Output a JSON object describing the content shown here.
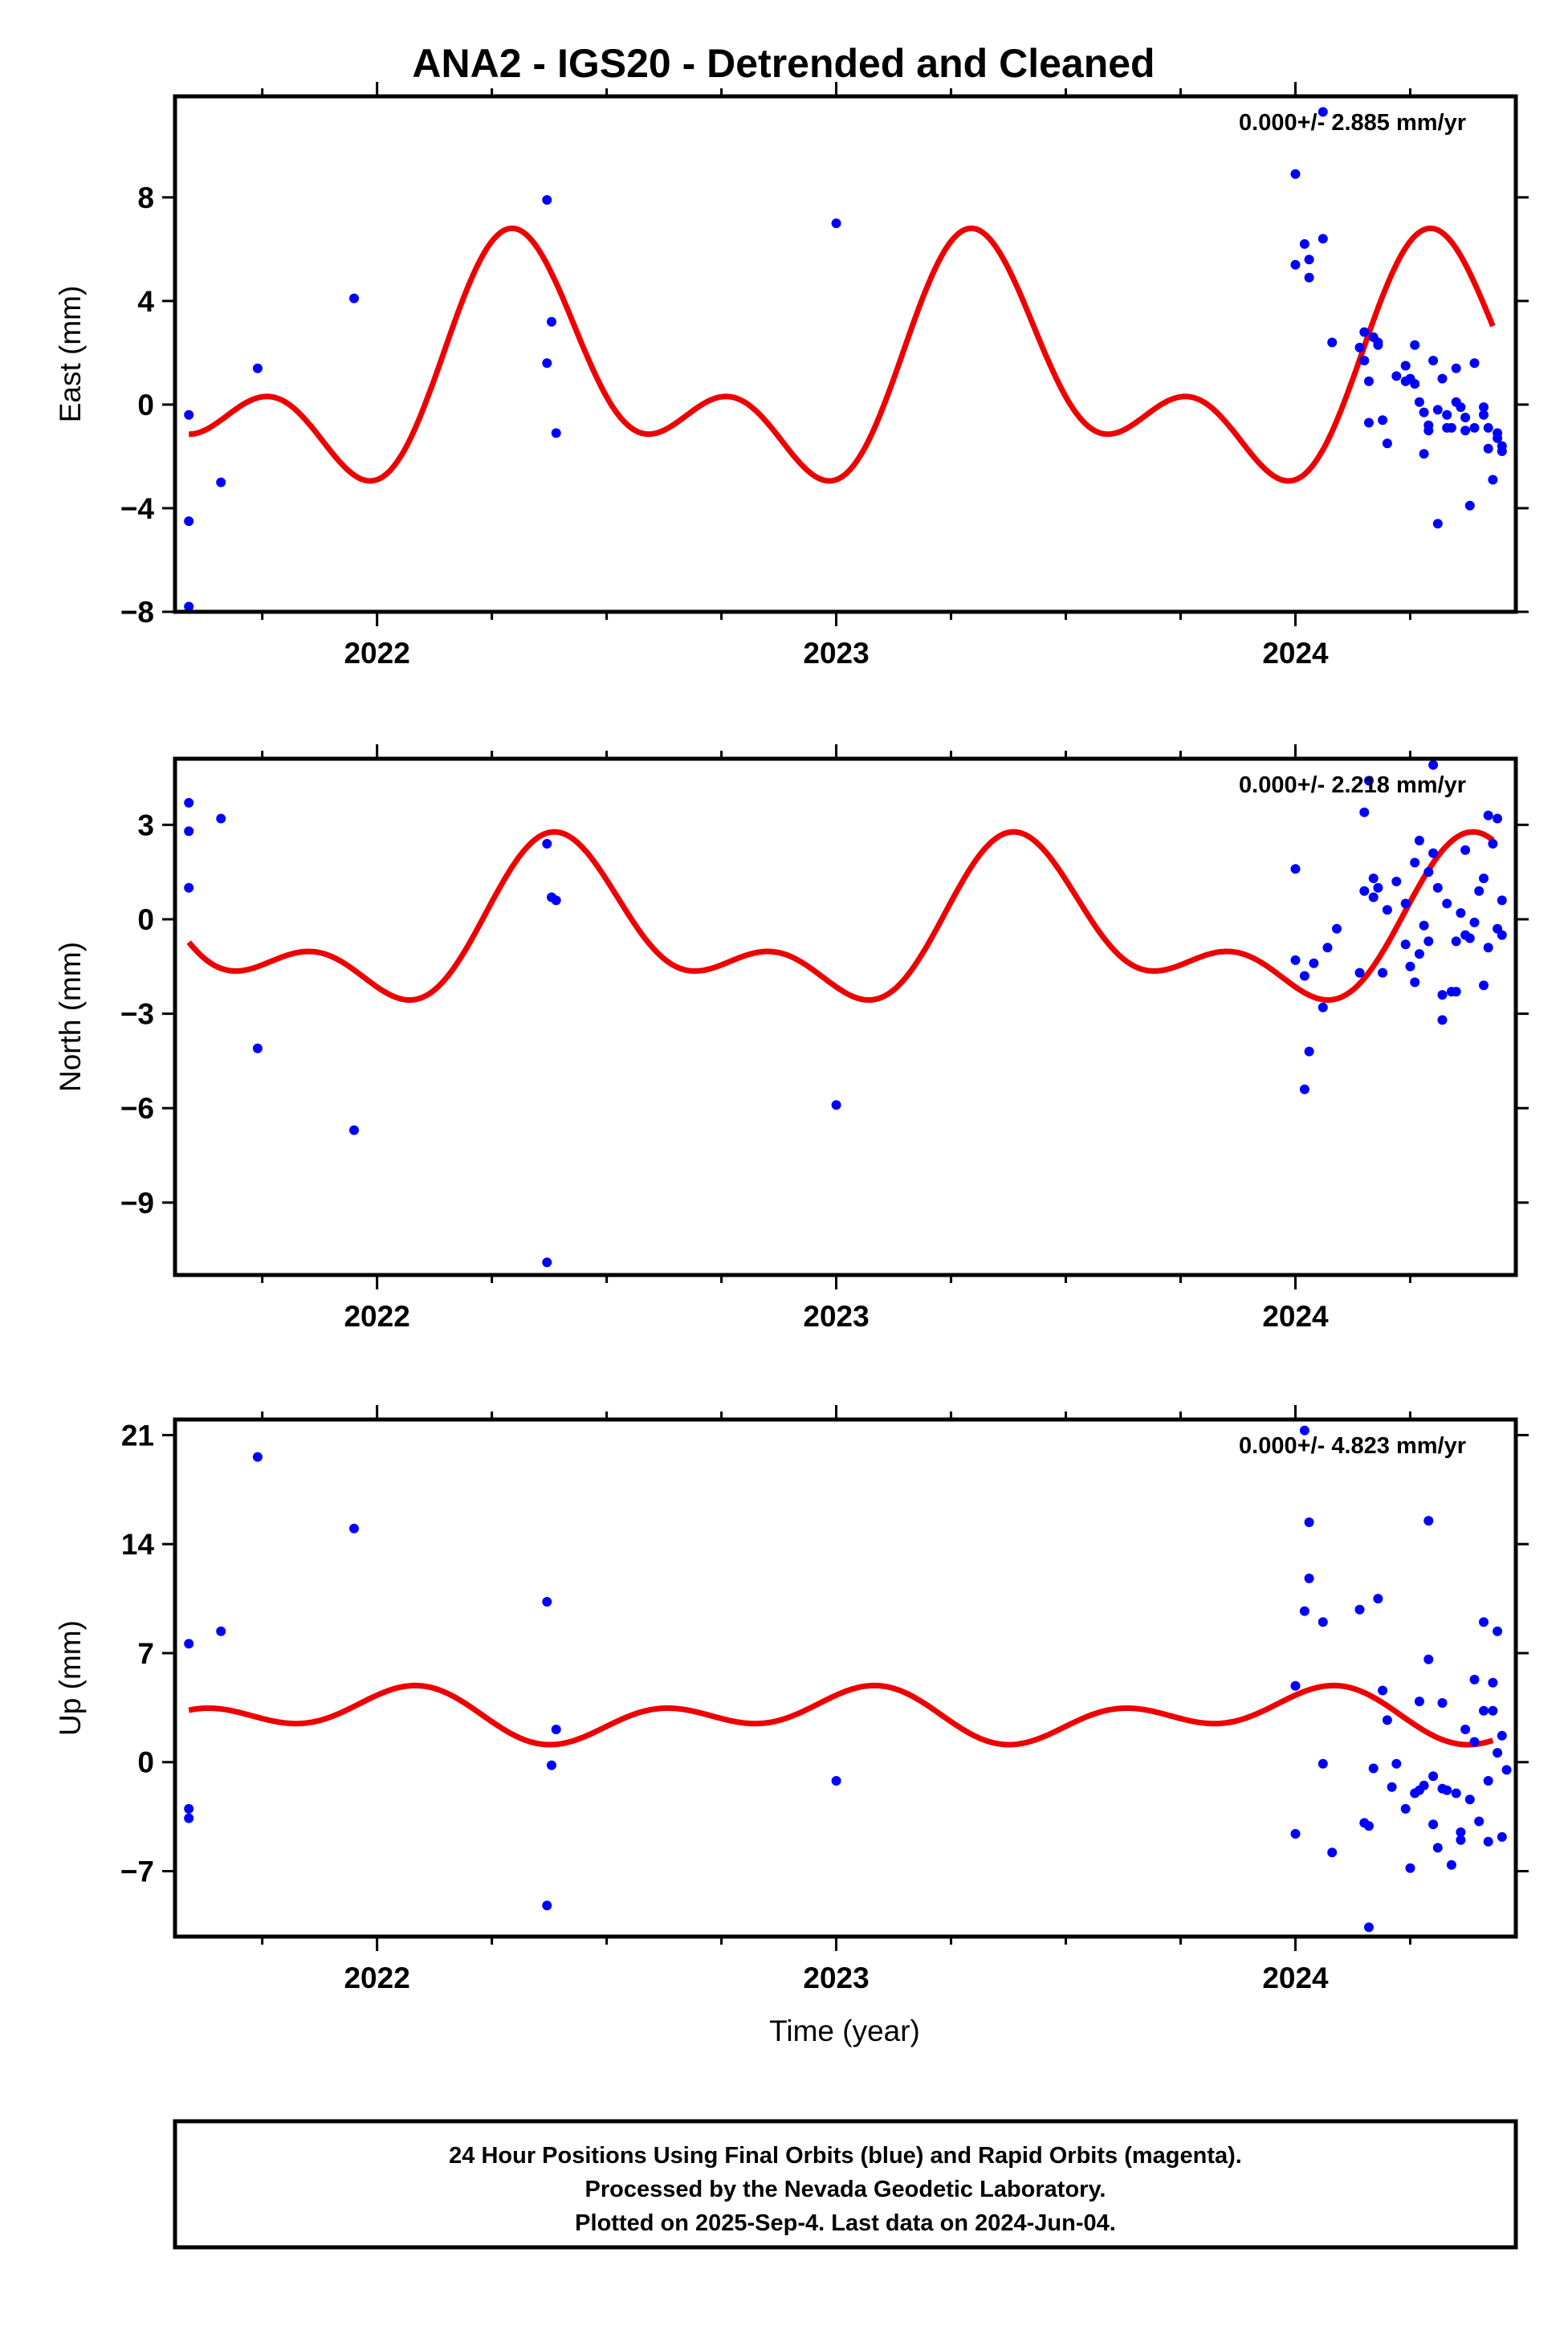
{
  "colors": {
    "final_orbits": "#0000ff",
    "model_fit": "#ee0000",
    "frame": "#000000"
  },
  "chart_data": {
    "type": "scatter",
    "title": "ANA2 - IGS20 - Detrended and Cleaned",
    "xlabel": "Time (year)",
    "xlim": [
      2021.56,
      2024.48
    ],
    "x_ticks": [
      2022,
      2023,
      2024
    ],
    "x_tick_labels": [
      "2022",
      "2023",
      "2024"
    ],
    "panels": [
      {
        "name": "east",
        "ylabel": "East (mm)",
        "ylim": [
          -8,
          11.9
        ],
        "y_ticks": [
          -8,
          -4,
          0,
          4,
          8
        ],
        "y_tick_labels": [
          "−8",
          "−4",
          "0",
          "4",
          "8"
        ],
        "rate_label": "0.000+/- 2.885 mm/yr",
        "model": {
          "offset": 1.0,
          "a1": -1.6,
          "b1": 3.0,
          "a2": -2.3,
          "b2": -1.0,
          "x_end": 2024.43
        },
        "points": [
          [
            2021.59,
            -0.4
          ],
          [
            2021.59,
            -4.5
          ],
          [
            2021.59,
            -7.8
          ],
          [
            2021.66,
            -3.0
          ],
          [
            2021.74,
            1.4
          ],
          [
            2021.95,
            4.1
          ],
          [
            2022.37,
            7.9
          ],
          [
            2022.37,
            1.6
          ],
          [
            2022.38,
            3.2
          ],
          [
            2022.39,
            -1.1
          ],
          [
            2023.0,
            7.0
          ],
          [
            2024.0,
            8.9
          ],
          [
            2024.0,
            5.4
          ],
          [
            2024.02,
            6.2
          ],
          [
            2024.03,
            5.6
          ],
          [
            2024.03,
            4.9
          ],
          [
            2024.06,
            11.3
          ],
          [
            2024.06,
            6.4
          ],
          [
            2024.08,
            2.4
          ],
          [
            2024.14,
            2.2
          ],
          [
            2024.15,
            2.8
          ],
          [
            2024.15,
            1.7
          ],
          [
            2024.16,
            0.9
          ],
          [
            2024.16,
            -0.7
          ],
          [
            2024.17,
            2.6
          ],
          [
            2024.18,
            2.3
          ],
          [
            2024.18,
            2.4
          ],
          [
            2024.19,
            -0.6
          ],
          [
            2024.2,
            -1.5
          ],
          [
            2024.22,
            1.1
          ],
          [
            2024.24,
            1.5
          ],
          [
            2024.24,
            0.9
          ],
          [
            2024.25,
            1.0
          ],
          [
            2024.26,
            0.8
          ],
          [
            2024.26,
            2.3
          ],
          [
            2024.27,
            0.1
          ],
          [
            2024.28,
            -0.3
          ],
          [
            2024.28,
            -1.9
          ],
          [
            2024.29,
            -1.0
          ],
          [
            2024.29,
            -0.8
          ],
          [
            2024.3,
            1.7
          ],
          [
            2024.31,
            -0.2
          ],
          [
            2024.31,
            -4.6
          ],
          [
            2024.32,
            1.0
          ],
          [
            2024.33,
            -0.4
          ],
          [
            2024.33,
            -0.9
          ],
          [
            2024.34,
            -0.9
          ],
          [
            2024.35,
            1.4
          ],
          [
            2024.35,
            0.1
          ],
          [
            2024.36,
            -0.1
          ],
          [
            2024.37,
            -1.0
          ],
          [
            2024.37,
            -0.5
          ],
          [
            2024.38,
            -3.9
          ],
          [
            2024.39,
            1.6
          ],
          [
            2024.39,
            -0.9
          ],
          [
            2024.41,
            -0.4
          ],
          [
            2024.41,
            -0.1
          ],
          [
            2024.42,
            -0.9
          ],
          [
            2024.42,
            -1.7
          ],
          [
            2024.43,
            -2.9
          ],
          [
            2024.44,
            -1.1
          ],
          [
            2024.44,
            -1.3
          ],
          [
            2024.45,
            -1.8
          ],
          [
            2024.45,
            -1.6
          ]
        ]
      },
      {
        "name": "north",
        "ylabel": "North (mm)",
        "ylim": [
          -11.3,
          5.1
        ],
        "y_ticks": [
          -9,
          -6,
          -3,
          0,
          3
        ],
        "y_tick_labels": [
          "−9",
          "−6",
          "−3",
          "0",
          "3"
        ],
        "rate_label": "0.000+/- 2.218 mm/yr",
        "model": {
          "offset": -0.45,
          "a1": -1.7,
          "b1": 1.0,
          "a2": 0.0,
          "b2": -1.3,
          "x_end": 2024.43
        },
        "points": [
          [
            2021.59,
            3.7
          ],
          [
            2021.59,
            2.8
          ],
          [
            2021.59,
            1.0
          ],
          [
            2021.66,
            3.2
          ],
          [
            2021.74,
            -4.1
          ],
          [
            2021.95,
            -6.7
          ],
          [
            2022.37,
            2.4
          ],
          [
            2022.37,
            -10.9
          ],
          [
            2022.38,
            0.7
          ],
          [
            2022.39,
            0.6
          ],
          [
            2023.0,
            -5.9
          ],
          [
            2024.0,
            1.6
          ],
          [
            2024.0,
            -1.3
          ],
          [
            2024.02,
            -5.4
          ],
          [
            2024.02,
            -1.8
          ],
          [
            2024.03,
            -4.2
          ],
          [
            2024.04,
            -1.4
          ],
          [
            2024.06,
            -2.8
          ],
          [
            2024.07,
            -0.9
          ],
          [
            2024.09,
            -0.3
          ],
          [
            2024.14,
            -1.7
          ],
          [
            2024.15,
            3.4
          ],
          [
            2024.15,
            0.9
          ],
          [
            2024.16,
            4.4
          ],
          [
            2024.17,
            1.3
          ],
          [
            2024.17,
            0.7
          ],
          [
            2024.18,
            1.0
          ],
          [
            2024.19,
            -1.7
          ],
          [
            2024.2,
            0.3
          ],
          [
            2024.22,
            1.2
          ],
          [
            2024.24,
            0.5
          ],
          [
            2024.24,
            -0.8
          ],
          [
            2024.25,
            -1.5
          ],
          [
            2024.26,
            1.8
          ],
          [
            2024.26,
            -2.0
          ],
          [
            2024.27,
            2.5
          ],
          [
            2024.27,
            -1.1
          ],
          [
            2024.28,
            -0.2
          ],
          [
            2024.29,
            1.5
          ],
          [
            2024.29,
            -0.7
          ],
          [
            2024.3,
            2.1
          ],
          [
            2024.3,
            4.9
          ],
          [
            2024.31,
            1.0
          ],
          [
            2024.32,
            -2.4
          ],
          [
            2024.32,
            -3.2
          ],
          [
            2024.33,
            0.5
          ],
          [
            2024.34,
            -2.3
          ],
          [
            2024.35,
            -2.3
          ],
          [
            2024.35,
            -0.7
          ],
          [
            2024.36,
            0.2
          ],
          [
            2024.37,
            -0.5
          ],
          [
            2024.37,
            2.2
          ],
          [
            2024.38,
            -0.6
          ],
          [
            2024.39,
            -0.1
          ],
          [
            2024.4,
            0.9
          ],
          [
            2024.41,
            -2.1
          ],
          [
            2024.41,
            1.3
          ],
          [
            2024.42,
            -0.9
          ],
          [
            2024.42,
            3.3
          ],
          [
            2024.43,
            2.4
          ],
          [
            2024.44,
            3.2
          ],
          [
            2024.44,
            -0.3
          ],
          [
            2024.45,
            -0.5
          ],
          [
            2024.45,
            0.6
          ]
        ]
      },
      {
        "name": "up",
        "ylabel": "Up (mm)",
        "ylim": [
          -11.2,
          22
        ],
        "y_ticks": [
          -7,
          0,
          7,
          14,
          21
        ],
        "y_tick_labels": [
          "−7",
          "0",
          "7",
          "14",
          "21"
        ],
        "rate_label": "0.000+/- 4.823 mm/yr",
        "model": {
          "offset": 3.0,
          "a1": 1.0,
          "b1": -0.1,
          "a2": 0.3,
          "b2": 1.1,
          "x_end": 2024.43
        },
        "points": [
          [
            2021.59,
            7.6
          ],
          [
            2021.59,
            -3.0
          ],
          [
            2021.59,
            -3.6
          ],
          [
            2021.66,
            8.4
          ],
          [
            2021.74,
            19.6
          ],
          [
            2021.95,
            15.0
          ],
          [
            2022.37,
            10.3
          ],
          [
            2022.37,
            -9.2
          ],
          [
            2022.38,
            -0.2
          ],
          [
            2022.39,
            2.1
          ],
          [
            2023.0,
            -1.2
          ],
          [
            2024.0,
            4.9
          ],
          [
            2024.0,
            -4.6
          ],
          [
            2024.02,
            21.3
          ],
          [
            2024.02,
            9.7
          ],
          [
            2024.03,
            15.4
          ],
          [
            2024.03,
            11.8
          ],
          [
            2024.06,
            9.0
          ],
          [
            2024.06,
            -0.1
          ],
          [
            2024.08,
            -5.8
          ],
          [
            2024.14,
            9.8
          ],
          [
            2024.15,
            -3.9
          ],
          [
            2024.16,
            -4.1
          ],
          [
            2024.16,
            -10.6
          ],
          [
            2024.17,
            -0.4
          ],
          [
            2024.18,
            10.5
          ],
          [
            2024.19,
            4.6
          ],
          [
            2024.2,
            2.7
          ],
          [
            2024.21,
            -1.6
          ],
          [
            2024.22,
            -0.1
          ],
          [
            2024.24,
            -3.0
          ],
          [
            2024.25,
            -6.8
          ],
          [
            2024.26,
            -2.0
          ],
          [
            2024.27,
            3.9
          ],
          [
            2024.27,
            -1.8
          ],
          [
            2024.28,
            -1.5
          ],
          [
            2024.29,
            6.6
          ],
          [
            2024.29,
            15.5
          ],
          [
            2024.3,
            -0.9
          ],
          [
            2024.3,
            -4.0
          ],
          [
            2024.31,
            -5.5
          ],
          [
            2024.32,
            3.8
          ],
          [
            2024.32,
            -1.7
          ],
          [
            2024.33,
            -1.8
          ],
          [
            2024.34,
            -6.6
          ],
          [
            2024.35,
            -2.0
          ],
          [
            2024.36,
            -4.5
          ],
          [
            2024.36,
            -5.0
          ],
          [
            2024.37,
            2.1
          ],
          [
            2024.38,
            -2.4
          ],
          [
            2024.39,
            5.3
          ],
          [
            2024.39,
            1.3
          ],
          [
            2024.4,
            -3.8
          ],
          [
            2024.41,
            3.3
          ],
          [
            2024.41,
            9.0
          ],
          [
            2024.42,
            -5.1
          ],
          [
            2024.42,
            -1.2
          ],
          [
            2024.43,
            3.3
          ],
          [
            2024.43,
            5.1
          ],
          [
            2024.44,
            0.6
          ],
          [
            2024.44,
            8.4
          ],
          [
            2024.45,
            -4.8
          ],
          [
            2024.45,
            1.7
          ],
          [
            2024.46,
            -0.5
          ]
        ]
      }
    ],
    "footer_lines": [
      "24 Hour Positions Using Final Orbits (blue) and Rapid Orbits (magenta).",
      "Processed by the Nevada Geodetic Laboratory.",
      "Plotted on 2025-Sep-4. Last data on 2024-Jun-04."
    ]
  }
}
